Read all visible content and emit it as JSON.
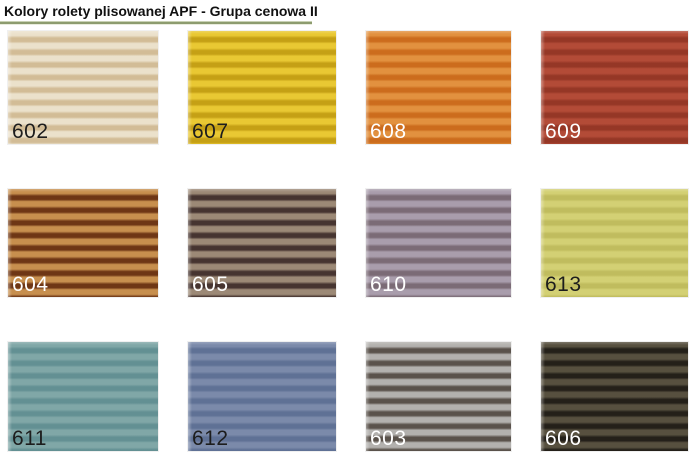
{
  "page": {
    "title": "Kolory rolety plisowanej APF - Grupa cenowa II"
  },
  "divider_color": "#8d9c6f",
  "swatches": [
    {
      "code": "602",
      "light": "#ebe1cb",
      "dark": "#d2bc96",
      "label_color": "#1d1d1d"
    },
    {
      "code": "607",
      "light": "#e9c833",
      "dark": "#c5a015",
      "label_color": "#1d1d1d"
    },
    {
      "code": "608",
      "light": "#e2913f",
      "dark": "#cc6c1d",
      "label_color": "#ffffff"
    },
    {
      "code": "609",
      "light": "#b34b37",
      "dark": "#953726",
      "label_color": "#ffffff"
    },
    {
      "code": "604",
      "light": "#c78f4e",
      "dark": "#6e3615",
      "label_color": "#ffffff"
    },
    {
      "code": "605",
      "light": "#9c8976",
      "dark": "#463430",
      "label_color": "#ffffff"
    },
    {
      "code": "610",
      "light": "#a99dac",
      "dark": "#7b6b76",
      "label_color": "#ffffff"
    },
    {
      "code": "613",
      "light": "#d3d074",
      "dark": "#c0bc5e",
      "label_color": "#1d1d1d"
    },
    {
      "code": "611",
      "light": "#80a7a7",
      "dark": "#639093",
      "label_color": "#1d1d1d"
    },
    {
      "code": "612",
      "light": "#7b8aaa",
      "dark": "#5f7195",
      "label_color": "#1d1d1d"
    },
    {
      "code": "603",
      "light": "#b3b1ae",
      "dark": "#5a524b",
      "label_color": "#ffffff"
    },
    {
      "code": "606",
      "light": "#57503f",
      "dark": "#242019",
      "label_color": "#ffffff"
    }
  ]
}
